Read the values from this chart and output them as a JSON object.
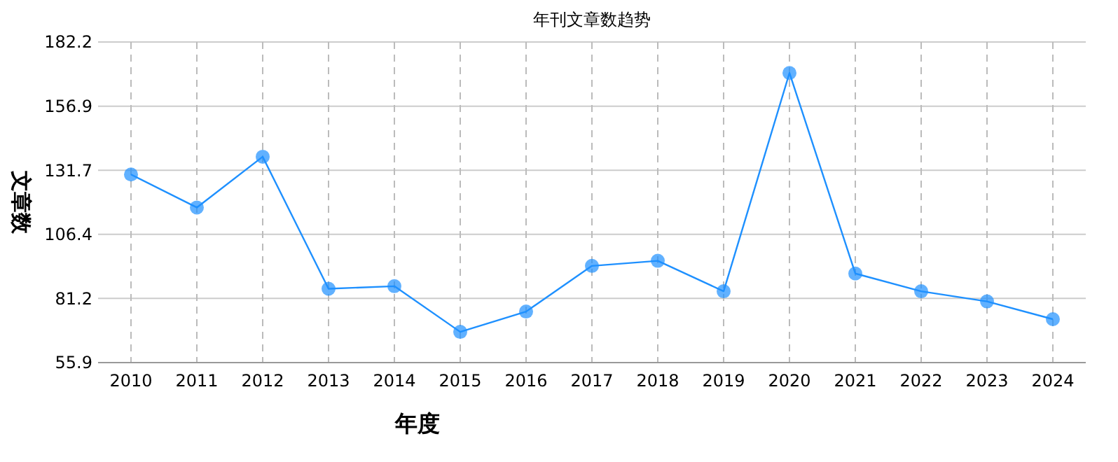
{
  "chart_data": {
    "type": "line",
    "title": "年刊文章数趋势",
    "xlabel": "年度",
    "ylabel": "文章数",
    "categories": [
      "2010",
      "2011",
      "2012",
      "2013",
      "2014",
      "2015",
      "2016",
      "2017",
      "2018",
      "2019",
      "2020",
      "2021",
      "2022",
      "2023",
      "2024"
    ],
    "series": [
      {
        "color": "#1e90ff",
        "values": [
          130,
          117,
          137,
          85,
          86,
          68,
          76,
          94,
          96,
          84,
          170,
          91,
          84,
          80,
          73
        ]
      }
    ],
    "ylim": [
      55.9,
      182.2
    ],
    "yticks": [
      55.9,
      81.2,
      106.4,
      131.7,
      156.9,
      182.2
    ],
    "grid": true,
    "marker": "circle",
    "line_style": "solid"
  }
}
